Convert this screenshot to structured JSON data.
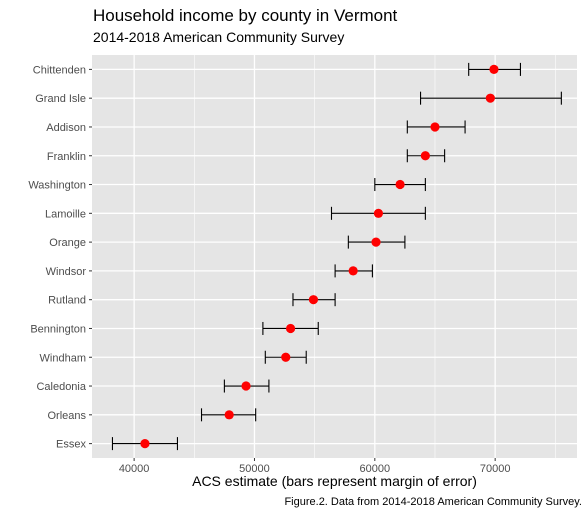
{
  "chart_data": {
    "type": "scatter",
    "title": "Household income by county in Vermont",
    "subtitle": "2014-2018 American Community Survey",
    "xlabel": "ACS estimate (bars represent margin of error)",
    "ylabel": "",
    "caption": "Figure.2. Data from 2014-2018 American Community Survey.",
    "xlim": [
      36500,
      76800
    ],
    "xticks": [
      40000,
      50000,
      60000,
      70000
    ],
    "xtick_labels": [
      "40000",
      "50000",
      "60000",
      "70000"
    ],
    "grid": true,
    "legend": "none",
    "point_color": "#FF0000",
    "errorbar_color": "#000000",
    "panel_color": "#E5E5E5",
    "grid_color": "#FFFFFF",
    "counties": [
      "Chittenden",
      "Grand Isle",
      "Addison",
      "Franklin",
      "Washington",
      "Lamoille",
      "Orange",
      "Windsor",
      "Rutland",
      "Bennington",
      "Windham",
      "Caledonia",
      "Orleans",
      "Essex"
    ],
    "estimate": [
      69900,
      69600,
      65000,
      64200,
      62100,
      60300,
      60100,
      58200,
      54900,
      53000,
      52600,
      49300,
      47900,
      40900
    ],
    "moe_low": [
      67800,
      63800,
      62700,
      62700,
      60000,
      56400,
      57800,
      56700,
      53200,
      50700,
      50900,
      47500,
      45600,
      38200
    ],
    "moe_high": [
      72100,
      75500,
      67500,
      65800,
      64200,
      64200,
      62500,
      59800,
      56700,
      55300,
      54300,
      51200,
      50100,
      43600
    ]
  }
}
